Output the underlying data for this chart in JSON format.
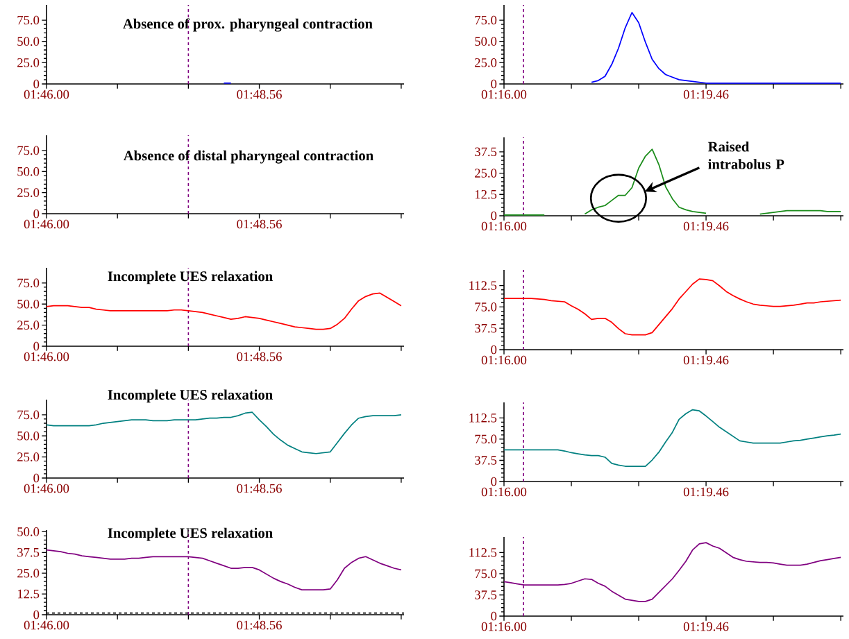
{
  "chart_data": [
    {
      "type": "line",
      "title": "Absence of prox. pharyngeal contraction",
      "ylim": [
        0,
        93
      ],
      "categories": [
        "01:46.00",
        null,
        null,
        null,
        null,
        null,
        null,
        null,
        null,
        null,
        null,
        null,
        null,
        null,
        null,
        null,
        null,
        null,
        null,
        null,
        null,
        null,
        null,
        null,
        null,
        null,
        null,
        null,
        null,
        null,
        "01:48.56",
        null,
        null,
        null,
        null,
        null,
        null,
        null,
        null,
        null,
        null,
        null,
        null,
        null,
        null,
        null,
        null,
        null,
        null,
        null,
        null
      ],
      "yticks": [
        0,
        {
          "value": 25,
          "label": "25.0"
        },
        {
          "value": 50,
          "label": "50.0"
        },
        {
          "value": 75,
          "label": "75.0"
        }
      ],
      "series": [
        {
          "color": "#0000ff",
          "values": [
            null,
            null,
            null,
            null,
            null,
            null,
            null,
            null,
            null,
            null,
            null,
            null,
            null,
            null,
            null,
            null,
            null,
            null,
            null,
            null,
            null,
            null,
            null,
            null,
            null,
            1,
            1,
            null,
            null,
            null,
            null,
            null,
            null,
            null,
            null,
            null,
            null,
            null,
            null,
            null,
            null,
            null,
            null,
            null,
            null,
            null,
            null,
            null,
            null,
            null,
            null
          ]
        }
      ]
    },
    {
      "type": "line",
      "ylim": [
        0,
        93
      ],
      "categories": [
        "01:16.00",
        null,
        null,
        null,
        null,
        null,
        null,
        null,
        null,
        null,
        null,
        null,
        null,
        null,
        null,
        null,
        null,
        null,
        null,
        null,
        null,
        null,
        null,
        null,
        null,
        null,
        null,
        null,
        null,
        null,
        "01:19.46",
        null,
        null,
        null,
        null,
        null,
        null,
        null,
        null,
        null,
        null,
        null,
        null,
        null,
        null,
        null,
        null,
        null,
        null,
        null,
        null
      ],
      "yticks": [
        0,
        {
          "value": 25,
          "label": "25.0"
        },
        {
          "value": 50,
          "label": "50.0"
        },
        {
          "value": 75,
          "label": "75.0"
        }
      ],
      "series": [
        {
          "color": "#0000ff",
          "values": [
            null,
            null,
            null,
            null,
            null,
            null,
            null,
            null,
            null,
            null,
            null,
            null,
            null,
            2,
            4,
            9,
            23,
            42,
            66,
            84,
            72,
            49,
            29,
            18,
            11,
            8,
            5,
            4,
            3,
            2,
            1,
            1,
            1,
            1,
            1,
            1,
            1,
            1,
            1,
            1,
            1,
            1,
            1,
            1,
            1,
            1,
            1,
            1,
            1,
            1,
            1
          ]
        }
      ]
    },
    {
      "type": "line",
      "title": "Absence of distal pharyngeal contraction",
      "ylim": [
        0,
        93
      ],
      "categories": [
        "01:46.00",
        null,
        null,
        null,
        null,
        null,
        null,
        null,
        null,
        null,
        null,
        null,
        null,
        null,
        null,
        null,
        null,
        null,
        null,
        null,
        null,
        null,
        null,
        null,
        null,
        null,
        null,
        null,
        null,
        null,
        "01:48.56",
        null,
        null,
        null,
        null,
        null,
        null,
        null,
        null,
        null,
        null,
        null,
        null,
        null,
        null,
        null,
        null,
        null,
        null,
        null,
        null
      ],
      "yticks": [
        0,
        {
          "value": 25,
          "label": "25.0"
        },
        {
          "value": 50,
          "label": "50.0"
        },
        {
          "value": 75,
          "label": "75.0"
        }
      ]
    },
    {
      "type": "line",
      "ylim": [
        0,
        46
      ],
      "annotations": [
        "Raised intrabolus P"
      ],
      "categories": [
        "01:16.00",
        null,
        null,
        null,
        null,
        null,
        null,
        null,
        null,
        null,
        null,
        null,
        null,
        null,
        null,
        null,
        null,
        null,
        null,
        null,
        null,
        null,
        null,
        null,
        null,
        null,
        null,
        null,
        null,
        null,
        "01:19.46",
        null,
        null,
        null,
        null,
        null,
        null,
        null,
        null,
        null,
        null,
        null,
        null,
        null,
        null,
        null,
        null,
        null,
        null,
        null,
        null
      ],
      "yticks": [
        0,
        12.5,
        {
          "value": 25,
          "label": "25.0"
        },
        37.5
      ],
      "series": [
        {
          "color": "#1a8c1a",
          "values": [
            0.5,
            0.5,
            0.5,
            0.5,
            0.5,
            0.5,
            0.5,
            null,
            null,
            null,
            null,
            null,
            1,
            3.5,
            5,
            6,
            9,
            12,
            12,
            16.5,
            28,
            35,
            39,
            30,
            17,
            10,
            5,
            3.5,
            2.5,
            2,
            1.5,
            null,
            null,
            null,
            null,
            null,
            null,
            null,
            1,
            1.5,
            2,
            2.5,
            3,
            3,
            3,
            3,
            3,
            3,
            2.5,
            2.5,
            2.5
          ]
        }
      ]
    },
    {
      "type": "line",
      "title": "Incomplete UES relaxation",
      "ylim": [
        0,
        93
      ],
      "categories": [
        "01:46.00",
        null,
        null,
        null,
        null,
        null,
        null,
        null,
        null,
        null,
        null,
        null,
        null,
        null,
        null,
        null,
        null,
        null,
        null,
        null,
        null,
        null,
        null,
        null,
        null,
        null,
        null,
        null,
        null,
        null,
        "01:48.56",
        null,
        null,
        null,
        null,
        null,
        null,
        null,
        null,
        null,
        null,
        null,
        null,
        null,
        null,
        null,
        null,
        null,
        null,
        null,
        null
      ],
      "yticks": [
        0,
        {
          "value": 25,
          "label": "25.0"
        },
        {
          "value": 50,
          "label": "50.0"
        },
        {
          "value": 75,
          "label": "75.0"
        }
      ],
      "series": [
        {
          "color": "#ff0000",
          "values": [
            47,
            48,
            48,
            48,
            47,
            46,
            46,
            44,
            43,
            42,
            42,
            42,
            42,
            42,
            42,
            42,
            42,
            42,
            43,
            43,
            42,
            41,
            40,
            38,
            36,
            34,
            32,
            33,
            35,
            34,
            33,
            31,
            29,
            27,
            25,
            23,
            22,
            21,
            20,
            20,
            21,
            26,
            33,
            44,
            54,
            59,
            62,
            63,
            58,
            53,
            48
          ]
        }
      ]
    },
    {
      "type": "line",
      "ylim": [
        0,
        140
      ],
      "categories": [
        "01:16.00",
        null,
        null,
        null,
        null,
        null,
        null,
        null,
        null,
        null,
        null,
        null,
        null,
        null,
        null,
        null,
        null,
        null,
        null,
        null,
        null,
        null,
        null,
        null,
        null,
        null,
        null,
        null,
        null,
        null,
        "01:19.46",
        null,
        null,
        null,
        null,
        null,
        null,
        null,
        null,
        null,
        null,
        null,
        null,
        null,
        null,
        null,
        null,
        null,
        null,
        null,
        null
      ],
      "yticks": [
        0,
        37.5,
        {
          "value": 75,
          "label": "75.0"
        },
        112.5
      ],
      "series": [
        {
          "color": "#ff0000",
          "values": [
            90,
            90,
            90,
            90,
            90,
            89,
            88,
            86,
            85,
            84,
            77,
            71,
            63,
            53,
            55,
            55,
            48,
            37,
            28,
            26,
            26,
            26,
            30,
            44,
            58,
            72,
            89,
            102,
            115,
            124,
            123,
            121,
            112,
            102,
            95,
            89,
            84,
            80,
            78,
            77,
            76,
            76,
            77,
            78,
            80,
            82,
            82,
            84,
            85,
            86,
            87
          ]
        }
      ]
    },
    {
      "type": "line",
      "title": "Incomplete UES relaxation",
      "ylim": [
        0,
        93
      ],
      "categories": [
        "01:46.00",
        null,
        null,
        null,
        null,
        null,
        null,
        null,
        null,
        null,
        null,
        null,
        null,
        null,
        null,
        null,
        null,
        null,
        null,
        null,
        null,
        null,
        null,
        null,
        null,
        null,
        null,
        null,
        null,
        null,
        "01:48.56",
        null,
        null,
        null,
        null,
        null,
        null,
        null,
        null,
        null,
        null,
        null,
        null,
        null,
        null,
        null,
        null,
        null,
        null,
        null,
        null
      ],
      "yticks": [
        0,
        {
          "value": 25,
          "label": "25.0"
        },
        {
          "value": 50,
          "label": "50.0"
        },
        {
          "value": 75,
          "label": "75.0"
        }
      ],
      "series": [
        {
          "color": "#008080",
          "values": [
            63,
            62,
            62,
            62,
            62,
            62,
            62,
            63,
            65,
            66,
            67,
            68,
            69,
            69,
            69,
            68,
            68,
            68,
            69,
            69,
            69,
            69,
            70,
            71,
            71,
            72,
            72,
            74,
            77,
            78,
            69,
            61,
            52,
            45,
            39,
            35,
            31,
            30,
            29,
            30,
            31,
            42,
            53,
            63,
            71,
            73,
            74,
            74,
            74,
            74,
            75
          ]
        }
      ]
    },
    {
      "type": "line",
      "ylim": [
        0,
        140
      ],
      "categories": [
        "01:16.00",
        null,
        null,
        null,
        null,
        null,
        null,
        null,
        null,
        null,
        null,
        null,
        null,
        null,
        null,
        null,
        null,
        null,
        null,
        null,
        null,
        null,
        null,
        null,
        null,
        null,
        null,
        null,
        null,
        null,
        "01:19.46",
        null,
        null,
        null,
        null,
        null,
        null,
        null,
        null,
        null,
        null,
        null,
        null,
        null,
        null,
        null,
        null,
        null,
        null,
        null,
        null
      ],
      "yticks": [
        0,
        37.5,
        {
          "value": 75,
          "label": "75.0"
        },
        112.5
      ],
      "series": [
        {
          "color": "#008080",
          "values": [
            56,
            56,
            56,
            56,
            56,
            56,
            56,
            56,
            56,
            54,
            51,
            49,
            47,
            46,
            46,
            43,
            32,
            29,
            27,
            27,
            27,
            27,
            38,
            52,
            70,
            87,
            110,
            120,
            127,
            125,
            116,
            106,
            96,
            88,
            80,
            72,
            70,
            68,
            68,
            68,
            68,
            68,
            70,
            72,
            73,
            75,
            77,
            79,
            81,
            82,
            84
          ]
        }
      ]
    },
    {
      "type": "line",
      "title": "Incomplete UES relaxation",
      "ylim": [
        0,
        51
      ],
      "categories": [
        "01:46.00",
        null,
        null,
        null,
        null,
        null,
        null,
        null,
        null,
        null,
        null,
        null,
        null,
        null,
        null,
        null,
        null,
        null,
        null,
        null,
        null,
        null,
        null,
        null,
        null,
        null,
        null,
        null,
        null,
        null,
        "01:48.56",
        null,
        null,
        null,
        null,
        null,
        null,
        null,
        null,
        null,
        null,
        null,
        null,
        null,
        null,
        null,
        null,
        null,
        null,
        null,
        null
      ],
      "yticks": [
        0,
        12.5,
        {
          "value": 25,
          "label": "25.0"
        },
        37.5,
        {
          "value": 50,
          "label": "50.0"
        }
      ],
      "ref_lines": [
        {
          "axis": "y",
          "value": 1,
          "color": "#000000",
          "line_style": "dashed"
        }
      ],
      "series": [
        {
          "color": "#800080",
          "values": [
            39,
            38.5,
            38,
            37,
            36.5,
            35.5,
            35,
            34.5,
            34,
            33.5,
            33.5,
            33.5,
            34,
            34,
            34.5,
            35,
            35,
            35,
            35,
            35,
            35,
            34.5,
            34,
            32.5,
            31,
            29.5,
            28,
            28,
            28.5,
            28.5,
            27,
            24.5,
            22,
            20,
            18.5,
            16.5,
            15,
            15,
            15,
            15,
            15.5,
            21,
            28,
            31.5,
            34,
            35,
            33,
            31,
            29.5,
            28,
            27
          ]
        }
      ]
    },
    {
      "type": "line",
      "ylim": [
        0,
        140
      ],
      "categories": [
        "01:16.00",
        null,
        null,
        null,
        null,
        null,
        null,
        null,
        null,
        null,
        null,
        null,
        null,
        null,
        null,
        null,
        null,
        null,
        null,
        null,
        null,
        null,
        null,
        null,
        null,
        null,
        null,
        null,
        null,
        null,
        "01:19.46",
        null,
        null,
        null,
        null,
        null,
        null,
        null,
        null,
        null,
        null,
        null,
        null,
        null,
        null,
        null,
        null,
        null,
        null,
        null,
        null
      ],
      "yticks": [
        0,
        37.5,
        {
          "value": 75,
          "label": "75.0"
        },
        112.5
      ],
      "series": [
        {
          "color": "#800080",
          "values": [
            61,
            59,
            57,
            55,
            55,
            55,
            55,
            55,
            55,
            56,
            58,
            62,
            66,
            65,
            58,
            53,
            44,
            37,
            30,
            28,
            26,
            26,
            30,
            42,
            54,
            66,
            81,
            97,
            117,
            128,
            130,
            124,
            120,
            112,
            104,
            100,
            97,
            96,
            95,
            95,
            94,
            92,
            90,
            90,
            90,
            92,
            95,
            98,
            100,
            102,
            104
          ]
        }
      ]
    }
  ]
}
